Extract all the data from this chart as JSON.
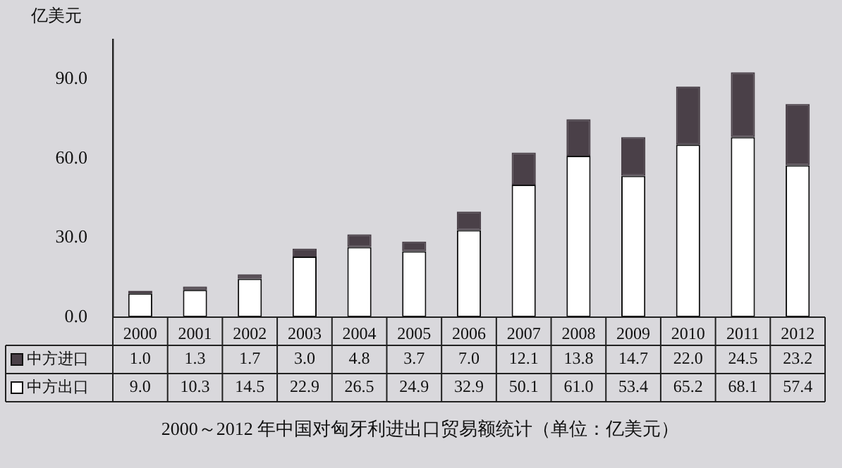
{
  "chart_data": {
    "type": "bar",
    "stacked": true,
    "title": "2000～2012 年中国对匈牙利进出口贸易额统计（单位：亿美元）",
    "ylabel": "亿美元",
    "categories": [
      "2000",
      "2001",
      "2002",
      "2003",
      "2004",
      "2005",
      "2006",
      "2007",
      "2008",
      "2009",
      "2010",
      "2011",
      "2012"
    ],
    "series": [
      {
        "name": "中方出口",
        "color": "#ffffff",
        "values": [
          9.0,
          10.3,
          14.5,
          22.9,
          26.5,
          24.9,
          32.9,
          50.1,
          61.0,
          53.4,
          65.2,
          68.1,
          57.4
        ],
        "value_labels": [
          "9.0",
          "10.3",
          "14.5",
          "22.9",
          "26.5",
          "24.9",
          "32.9",
          "50.1",
          "61.0",
          "53.4",
          "65.2",
          "68.1",
          "57.4"
        ]
      },
      {
        "name": "中方进口",
        "color": "#4a4048",
        "values": [
          1.0,
          1.3,
          1.7,
          3.0,
          4.8,
          3.7,
          7.0,
          12.1,
          13.8,
          14.7,
          22.0,
          24.5,
          23.2
        ],
        "value_labels": [
          "1.0",
          "1.3",
          "1.7",
          "3.0",
          "4.8",
          "3.7",
          "7.0",
          "12.1",
          "13.8",
          "14.7",
          "22.0",
          "24.5",
          "23.2"
        ]
      }
    ],
    "ylim": [
      0,
      105
    ],
    "yticks": [
      {
        "value": 0,
        "label": "0.0"
      },
      {
        "value": 30,
        "label": "30.0"
      },
      {
        "value": 60,
        "label": "60.0"
      },
      {
        "value": 90,
        "label": "90.0"
      }
    ],
    "legend": "bottom"
  }
}
